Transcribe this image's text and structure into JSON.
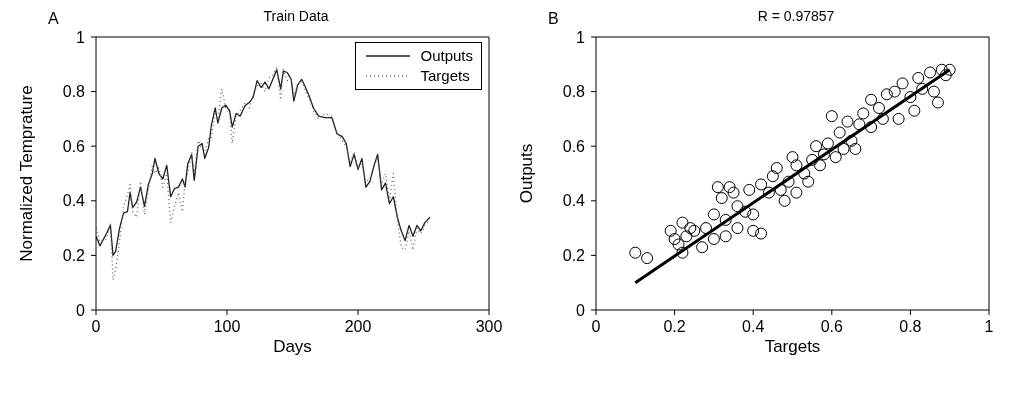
{
  "chart_data": [
    {
      "type": "line",
      "title": "Train Data",
      "xlabel": "Days",
      "ylabel": "Normalized Temprature",
      "annotations": [
        "A"
      ],
      "xlim": [
        0,
        300
      ],
      "xticks": [
        0,
        100,
        200,
        300
      ],
      "ylim": [
        0,
        1
      ],
      "yticks": [
        0,
        0.2,
        0.4,
        0.6,
        0.8,
        1
      ],
      "legend": "top right",
      "series": [
        {
          "name": "Outputs",
          "color": "#222222",
          "line_style": "solid",
          "x": [
            0,
            3,
            8,
            11,
            13,
            15,
            18,
            21,
            24,
            26,
            28,
            31,
            34,
            37,
            40,
            43,
            45,
            48,
            51,
            54,
            57,
            60,
            63,
            66,
            68,
            70,
            73,
            75,
            78,
            81,
            83,
            86,
            88,
            91,
            93,
            96,
            99,
            102,
            104,
            107,
            110,
            114,
            117,
            120,
            123,
            126,
            129,
            132,
            135,
            138,
            141,
            143,
            146,
            149,
            151,
            154,
            157,
            160,
            163,
            166,
            170,
            175,
            180,
            184,
            188,
            191,
            194,
            197,
            200,
            203,
            206,
            209,
            212,
            215,
            218,
            221,
            224,
            227,
            230,
            233,
            236,
            239,
            242,
            245,
            248,
            251,
            255
          ],
          "values": [
            0.27,
            0.235,
            0.28,
            0.31,
            0.2,
            0.215,
            0.3,
            0.355,
            0.36,
            0.43,
            0.375,
            0.395,
            0.45,
            0.38,
            0.46,
            0.5,
            0.555,
            0.5,
            0.48,
            0.53,
            0.415,
            0.445,
            0.45,
            0.48,
            0.45,
            0.535,
            0.57,
            0.475,
            0.6,
            0.61,
            0.555,
            0.595,
            0.675,
            0.74,
            0.685,
            0.74,
            0.75,
            0.73,
            0.67,
            0.72,
            0.71,
            0.75,
            0.76,
            0.78,
            0.84,
            0.815,
            0.835,
            0.81,
            0.845,
            0.88,
            0.81,
            0.875,
            0.87,
            0.845,
            0.765,
            0.825,
            0.845,
            0.815,
            0.78,
            0.74,
            0.71,
            0.705,
            0.705,
            0.645,
            0.635,
            0.61,
            0.525,
            0.57,
            0.515,
            0.555,
            0.45,
            0.47,
            0.525,
            0.57,
            0.44,
            0.465,
            0.39,
            0.415,
            0.34,
            0.29,
            0.255,
            0.31,
            0.27,
            0.31,
            0.29,
            0.32,
            0.34
          ]
        },
        {
          "name": "Targets",
          "color": "#666666",
          "line_style": "dotted",
          "x": [
            0,
            3,
            8,
            11,
            13,
            15,
            18,
            21,
            24,
            26,
            28,
            31,
            34,
            37,
            40,
            43,
            45,
            48,
            51,
            54,
            57,
            60,
            63,
            66,
            68,
            70,
            73,
            75,
            78,
            81,
            83,
            86,
            88,
            91,
            93,
            96,
            99,
            102,
            104,
            107,
            110,
            114,
            117,
            120,
            123,
            126,
            129,
            132,
            135,
            138,
            141,
            143,
            146,
            149,
            151,
            154,
            157,
            160,
            163,
            166,
            170,
            175,
            180,
            184,
            188,
            191,
            194,
            197,
            200,
            203,
            206,
            209,
            212,
            215,
            218,
            221,
            224,
            227,
            230,
            233,
            236,
            239,
            242,
            245,
            248,
            251,
            255
          ],
          "values": [
            0.3,
            0.25,
            0.26,
            0.32,
            0.11,
            0.15,
            0.25,
            0.38,
            0.42,
            0.46,
            0.36,
            0.34,
            0.47,
            0.35,
            0.44,
            0.53,
            0.5,
            0.52,
            0.45,
            0.5,
            0.32,
            0.38,
            0.43,
            0.36,
            0.47,
            0.5,
            0.58,
            0.5,
            0.62,
            0.59,
            0.58,
            0.63,
            0.63,
            0.72,
            0.7,
            0.81,
            0.74,
            0.72,
            0.61,
            0.71,
            0.73,
            0.76,
            0.74,
            0.79,
            0.82,
            0.83,
            0.8,
            0.85,
            0.86,
            0.89,
            0.77,
            0.88,
            0.84,
            0.85,
            0.78,
            0.83,
            0.84,
            0.8,
            0.77,
            0.73,
            0.7,
            0.72,
            0.71,
            0.65,
            0.62,
            0.6,
            0.54,
            0.58,
            0.52,
            0.54,
            0.47,
            0.48,
            0.52,
            0.56,
            0.46,
            0.5,
            0.4,
            0.5,
            0.33,
            0.23,
            0.22,
            0.29,
            0.22,
            0.3,
            0.28,
            0.31,
            0.33
          ]
        }
      ]
    },
    {
      "type": "scatter",
      "title": "R = 0.97857",
      "xlabel": "Targets",
      "ylabel": "Outputs",
      "annotations": [
        "B"
      ],
      "xlim": [
        0,
        1
      ],
      "xticks": [
        0,
        0.2,
        0.4,
        0.6,
        0.8,
        1
      ],
      "ylim": [
        0,
        1
      ],
      "yticks": [
        0,
        0.2,
        0.4,
        0.6,
        0.8,
        1
      ],
      "marker": "circle",
      "series": [
        {
          "color": "#000000",
          "x": [
            0.1,
            0.13,
            0.19,
            0.2,
            0.21,
            0.22,
            0.22,
            0.23,
            0.24,
            0.25,
            0.27,
            0.28,
            0.3,
            0.3,
            0.31,
            0.32,
            0.33,
            0.33,
            0.34,
            0.35,
            0.36,
            0.36,
            0.38,
            0.39,
            0.4,
            0.4,
            0.42,
            0.42,
            0.44,
            0.45,
            0.46,
            0.47,
            0.48,
            0.49,
            0.5,
            0.51,
            0.51,
            0.53,
            0.54,
            0.55,
            0.56,
            0.57,
            0.58,
            0.59,
            0.6,
            0.61,
            0.62,
            0.63,
            0.64,
            0.65,
            0.66,
            0.67,
            0.68,
            0.7,
            0.7,
            0.72,
            0.73,
            0.74,
            0.76,
            0.77,
            0.78,
            0.8,
            0.81,
            0.82,
            0.83,
            0.85,
            0.86,
            0.87,
            0.88,
            0.89,
            0.9
          ],
          "values": [
            0.21,
            0.19,
            0.29,
            0.26,
            0.24,
            0.32,
            0.21,
            0.27,
            0.3,
            0.29,
            0.23,
            0.3,
            0.35,
            0.26,
            0.45,
            0.41,
            0.27,
            0.33,
            0.45,
            0.43,
            0.3,
            0.38,
            0.36,
            0.44,
            0.29,
            0.35,
            0.28,
            0.46,
            0.43,
            0.49,
            0.52,
            0.44,
            0.4,
            0.47,
            0.56,
            0.43,
            0.53,
            0.5,
            0.47,
            0.55,
            0.6,
            0.53,
            0.57,
            0.61,
            0.71,
            0.56,
            0.65,
            0.59,
            0.69,
            0.62,
            0.59,
            0.68,
            0.72,
            0.77,
            0.67,
            0.74,
            0.7,
            0.79,
            0.8,
            0.7,
            0.83,
            0.78,
            0.73,
            0.85,
            0.81,
            0.87,
            0.8,
            0.76,
            0.88,
            0.86,
            0.88
          ]
        },
        {
          "type": "line",
          "color": "#000000",
          "line_style": "solid",
          "marker": "none",
          "x": [
            0.1,
            0.9
          ],
          "values": [
            0.1,
            0.88
          ]
        }
      ]
    }
  ]
}
